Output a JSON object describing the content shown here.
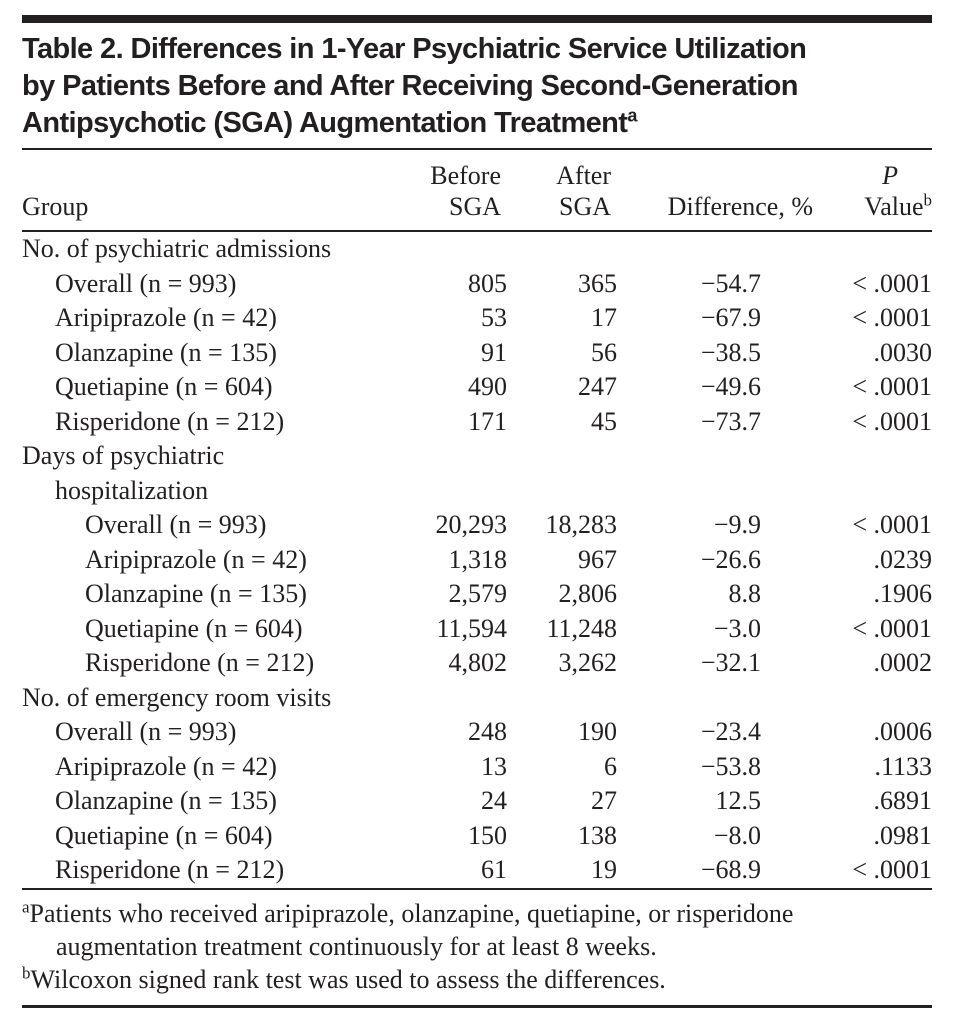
{
  "colors": {
    "text": "#231f20",
    "rule": "#231f20",
    "background": "#ffffff"
  },
  "title": {
    "lines": [
      "Table 2. Differences in 1-Year Psychiatric Service Utilization",
      "by Patients Before and After Receiving Second-Generation",
      "Antipsychotic (SGA) Augmentation Treatment"
    ],
    "superscript": "a"
  },
  "table": {
    "columns": {
      "group": "Group",
      "before_line1": "Before",
      "before_line2": "SGA",
      "after_line1": "After",
      "after_line2": "SGA",
      "difference": "Difference, %",
      "p_line1": "P",
      "p_line2": "Value",
      "p_superscript": "b"
    },
    "rows": [
      {
        "label": "No. of psychiatric admissions",
        "indent": 0,
        "before": "",
        "after": "",
        "difference": "",
        "p": ""
      },
      {
        "label": "Overall (n = 993)",
        "indent": 1,
        "before": "805",
        "after": "365",
        "difference": "−54.7",
        "p": "< .0001"
      },
      {
        "label": "Aripiprazole (n = 42)",
        "indent": 1,
        "before": "53",
        "after": "17",
        "difference": "−67.9",
        "p": "< .0001"
      },
      {
        "label": "Olanzapine (n = 135)",
        "indent": 1,
        "before": "91",
        "after": "56",
        "difference": "−38.5",
        "p": ".0030"
      },
      {
        "label": "Quetiapine (n = 604)",
        "indent": 1,
        "before": "490",
        "after": "247",
        "difference": "−49.6",
        "p": "< .0001"
      },
      {
        "label": "Risperidone (n = 212)",
        "indent": 1,
        "before": "171",
        "after": "45",
        "difference": "−73.7",
        "p": "< .0001"
      },
      {
        "label": "Days of psychiatric",
        "indent": 0,
        "before": "",
        "after": "",
        "difference": "",
        "p": ""
      },
      {
        "label": "hospitalization",
        "indent": 1,
        "before": "",
        "after": "",
        "difference": "",
        "p": ""
      },
      {
        "label": "Overall (n = 993)",
        "indent": 2,
        "before": "20,293",
        "after": "18,283",
        "difference": "−9.9",
        "p": "< .0001"
      },
      {
        "label": "Aripiprazole (n = 42)",
        "indent": 2,
        "before": "1,318",
        "after": "967",
        "difference": "−26.6",
        "p": ".0239"
      },
      {
        "label": "Olanzapine (n = 135)",
        "indent": 2,
        "before": "2,579",
        "after": "2,806",
        "difference": "8.8",
        "p": ".1906"
      },
      {
        "label": "Quetiapine (n = 604)",
        "indent": 2,
        "before": "11,594",
        "after": "11,248",
        "difference": "−3.0",
        "p": "< .0001"
      },
      {
        "label": "Risperidone (n = 212)",
        "indent": 2,
        "before": "4,802",
        "after": "3,262",
        "difference": "−32.1",
        "p": ".0002"
      },
      {
        "label": "No. of emergency room visits",
        "indent": 0,
        "before": "",
        "after": "",
        "difference": "",
        "p": ""
      },
      {
        "label": "Overall (n = 993)",
        "indent": 1,
        "before": "248",
        "after": "190",
        "difference": "−23.4",
        "p": ".0006"
      },
      {
        "label": "Aripiprazole (n = 42)",
        "indent": 1,
        "before": "13",
        "after": "6",
        "difference": "−53.8",
        "p": ".1133"
      },
      {
        "label": "Olanzapine (n = 135)",
        "indent": 1,
        "before": "24",
        "after": "27",
        "difference": "12.5",
        "p": ".6891"
      },
      {
        "label": "Quetiapine (n = 604)",
        "indent": 1,
        "before": "150",
        "after": "138",
        "difference": "−8.0",
        "p": ".0981"
      },
      {
        "label": "Risperidone (n = 212)",
        "indent": 1,
        "before": "61",
        "after": "19",
        "difference": "−68.9",
        "p": "< .0001"
      }
    ]
  },
  "footnotes": [
    {
      "marker": "a",
      "text": "Patients who received aripiprazole, olanzapine, quetiapine, or risperidone augmentation treatment continuously for at least 8 weeks."
    },
    {
      "marker": "b",
      "text": "Wilcoxon signed rank test was used to assess the differences."
    }
  ]
}
